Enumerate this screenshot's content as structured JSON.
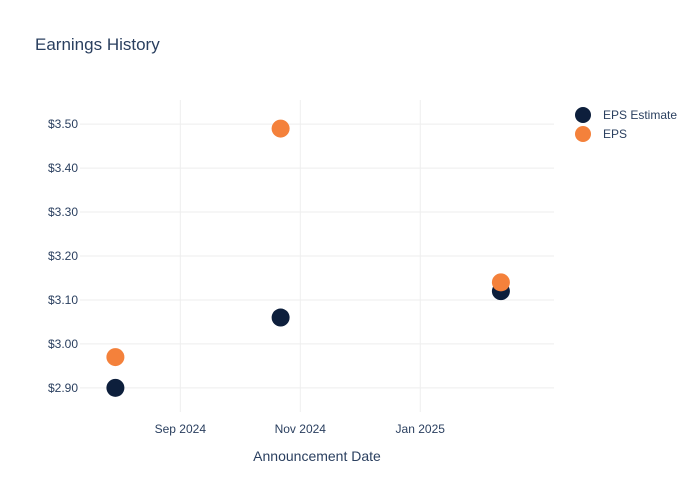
{
  "chart_data": {
    "type": "scatter",
    "title": "Earnings History",
    "xlabel": "Announcement Date",
    "ylabel": "",
    "x_ticks": [
      {
        "date": "2024-09-01",
        "label": "Sep 2024"
      },
      {
        "date": "2024-11-01",
        "label": "Nov 2024"
      },
      {
        "date": "2025-01-01",
        "label": "Jan 2025"
      }
    ],
    "x_range": [
      "2024-07-12",
      "2025-03-10"
    ],
    "y_ticks": [
      2.9,
      3.0,
      3.1,
      3.2,
      3.3,
      3.4,
      3.5
    ],
    "y_tick_labels": [
      "$2.90",
      "$3.00",
      "$3.10",
      "$3.20",
      "$3.30",
      "$3.40",
      "$3.50"
    ],
    "ylim": [
      2.845,
      3.555
    ],
    "grid": true,
    "legend_position": "top-right",
    "series": [
      {
        "name": "EPS Estimate",
        "color": "#0d1f3c",
        "points": [
          {
            "x": "2024-07-30",
            "y": 2.9
          },
          {
            "x": "2024-10-22",
            "y": 3.06
          },
          {
            "x": "2025-02-11",
            "y": 3.12
          }
        ]
      },
      {
        "name": "EPS",
        "color": "#f4813b",
        "points": [
          {
            "x": "2024-07-30",
            "y": 2.97
          },
          {
            "x": "2024-10-22",
            "y": 3.49
          },
          {
            "x": "2025-02-11",
            "y": 3.14
          }
        ]
      }
    ]
  }
}
